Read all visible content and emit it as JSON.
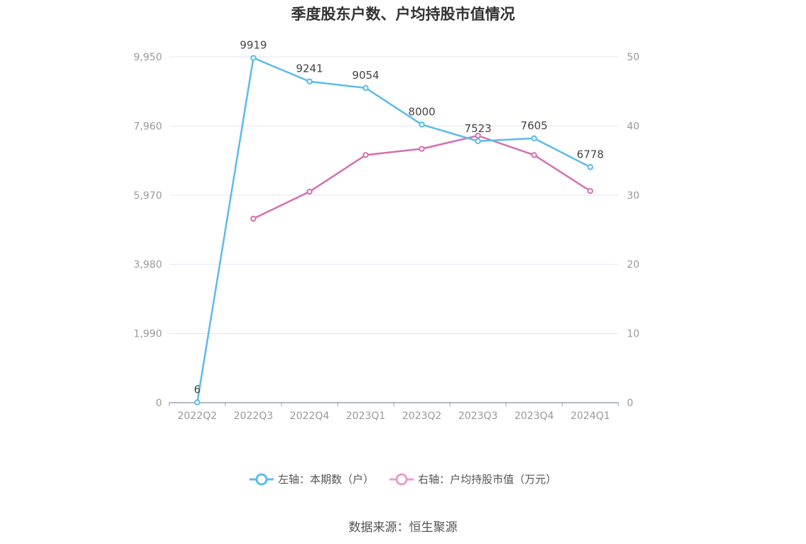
{
  "title": "季度股东户数、户均持股市值情况",
  "source": "数据来源：恒生聚源",
  "colors": {
    "left_series": "#5bbbec",
    "right_series": "#d46fb4",
    "grid": "#e3e6f3",
    "axis": "#9aa0b4",
    "tick_text": "#999999",
    "label_text": "#444444"
  },
  "legend": [
    {
      "label": "左轴：本期数（户）",
      "color": "#5bbbec"
    },
    {
      "label": "右轴：户均持股市值（万元）",
      "color": "#e79fd0"
    }
  ],
  "chart_data": {
    "type": "line",
    "categories": [
      "2022Q2",
      "2022Q3",
      "2022Q4",
      "2023Q1",
      "2023Q2",
      "2023Q3",
      "2023Q4",
      "2024Q1"
    ],
    "left_axis": {
      "ticks": [
        "0",
        "1,990",
        "3,980",
        "5,970",
        "7,960",
        "9,950"
      ],
      "ylim": [
        0,
        9950
      ]
    },
    "right_axis": {
      "ticks": [
        "0",
        "10",
        "20",
        "30",
        "40",
        "50"
      ],
      "ylim": [
        0,
        50
      ]
    },
    "grid": true,
    "legend_position": "bottom-center",
    "series": [
      {
        "name": "左轴：本期数（户）",
        "axis": "left",
        "values": [
          6,
          9919,
          9241,
          9054,
          8000,
          7523,
          7605,
          6778
        ],
        "data_labels": [
          "6",
          "9919",
          "9241",
          "9054",
          "8000",
          "7523",
          "7605",
          "6778"
        ]
      },
      {
        "name": "右轴：户均持股市值（万元）",
        "axis": "right",
        "values": [
          null,
          26.6,
          30.5,
          35.8,
          36.7,
          38.6,
          35.8,
          30.6
        ]
      }
    ]
  }
}
